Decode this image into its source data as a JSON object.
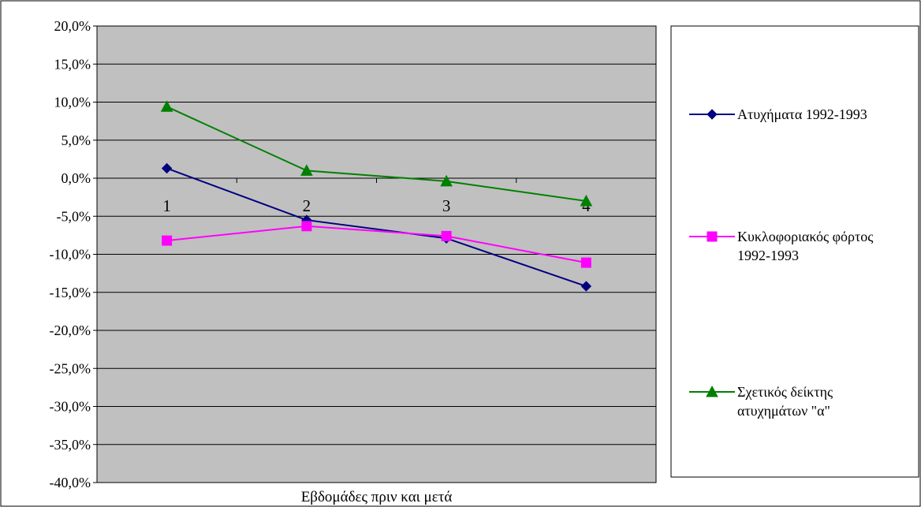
{
  "chart_data": {
    "type": "line",
    "xlabel": "Εβδομάδες πριν και μετά",
    "ylabel": "",
    "categories": [
      "1",
      "2",
      "3",
      "4"
    ],
    "ylim": [
      -40,
      20
    ],
    "y_tick_step": 5,
    "y_tick_labels": [
      "20,0%",
      "15,0%",
      "10,0%",
      "5,0%",
      "0,0%",
      "-5,0%",
      "-10,0%",
      "-15,0%",
      "-20,0%",
      "-25,0%",
      "-30,0%",
      "-35,0%",
      "-40,0%"
    ],
    "grid": true,
    "plot_background": "#c0c0c0",
    "legend_position": "right",
    "series": [
      {
        "name": "Ατυχήματα 1992-1993",
        "legend_lines": [
          "Ατυχήματα 1992-1993"
        ],
        "values": [
          1.3,
          -5.5,
          -7.9,
          -14.2
        ],
        "color": "#000080",
        "marker": "diamond"
      },
      {
        "name": "Κυκλοφοριακός φόρτος 1992-1993",
        "legend_lines": [
          "Κυκλοφοριακός φόρτος",
          "1992-1993"
        ],
        "values": [
          -8.2,
          -6.3,
          -7.6,
          -11.1
        ],
        "color": "#ff00ff",
        "marker": "square"
      },
      {
        "name": "Σχετικός δείκτης ατυχημάτων \"α\"",
        "legend_lines": [
          "Σχετικός δείκτης",
          "ατυχημάτων \"α\""
        ],
        "values": [
          9.4,
          1.0,
          -0.4,
          -3.0
        ],
        "color": "#008000",
        "marker": "triangle"
      }
    ]
  }
}
